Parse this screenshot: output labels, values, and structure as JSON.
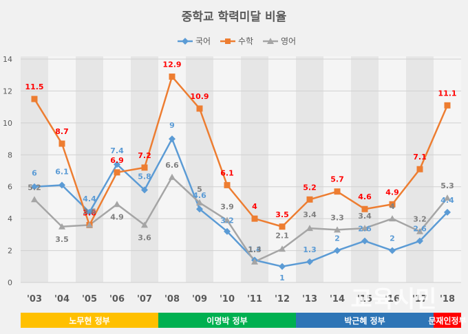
{
  "chart_data": {
    "type": "line",
    "title": "중학교 학력미달 비율",
    "categories": [
      "'03",
      "'04",
      "'05",
      "'06",
      "'07",
      "'08",
      "'09",
      "'10",
      "'11",
      "'12",
      "'13",
      "'14",
      "'15",
      "'16",
      "'17",
      "'18"
    ],
    "ylim": [
      0,
      14
    ],
    "yticks": [
      "0",
      "2",
      "4",
      "6",
      "8",
      "10",
      "12",
      "14"
    ],
    "grid": true,
    "legend_position": "top",
    "series": [
      {
        "name": "국어",
        "color": "#5b9bd5",
        "label_color": "#5b9bd5",
        "marker": "diamond",
        "values": [
          6,
          6.1,
          4.4,
          7.4,
          5.8,
          9,
          4.6,
          3.2,
          1.4,
          1,
          1.3,
          2,
          2.6,
          2,
          2.6,
          4.4
        ]
      },
      {
        "name": "수학",
        "color": "#ed7d31",
        "label_color": "#ff0000",
        "marker": "square",
        "values": [
          11.5,
          8.7,
          3.6,
          6.9,
          7.2,
          12.9,
          10.9,
          6.1,
          4,
          3.5,
          5.2,
          5.7,
          4.6,
          4.9,
          7.1,
          11.1
        ]
      },
      {
        "name": "영어",
        "color": "#a5a5a5",
        "label_color": "#7f7f7f",
        "marker": "triangle",
        "values": [
          5.2,
          3.5,
          3.6,
          4.9,
          3.6,
          6.6,
          5,
          3.9,
          1.3,
          2.1,
          3.4,
          3.3,
          3.4,
          4,
          3.2,
          5.3
        ]
      }
    ],
    "eras": [
      {
        "label": "노무현 정부",
        "color": "#ffc000",
        "from": 0,
        "to": 4
      },
      {
        "label": "이명박 정부",
        "color": "#00b050",
        "from": 5,
        "to": 9
      },
      {
        "label": "박근혜 정부",
        "color": "#2e75b6",
        "from": 10,
        "to": 14
      },
      {
        "label": "문재인정부",
        "color": "#ff0000",
        "from": 15,
        "to": 15
      }
    ]
  },
  "watermark": "교육시민"
}
